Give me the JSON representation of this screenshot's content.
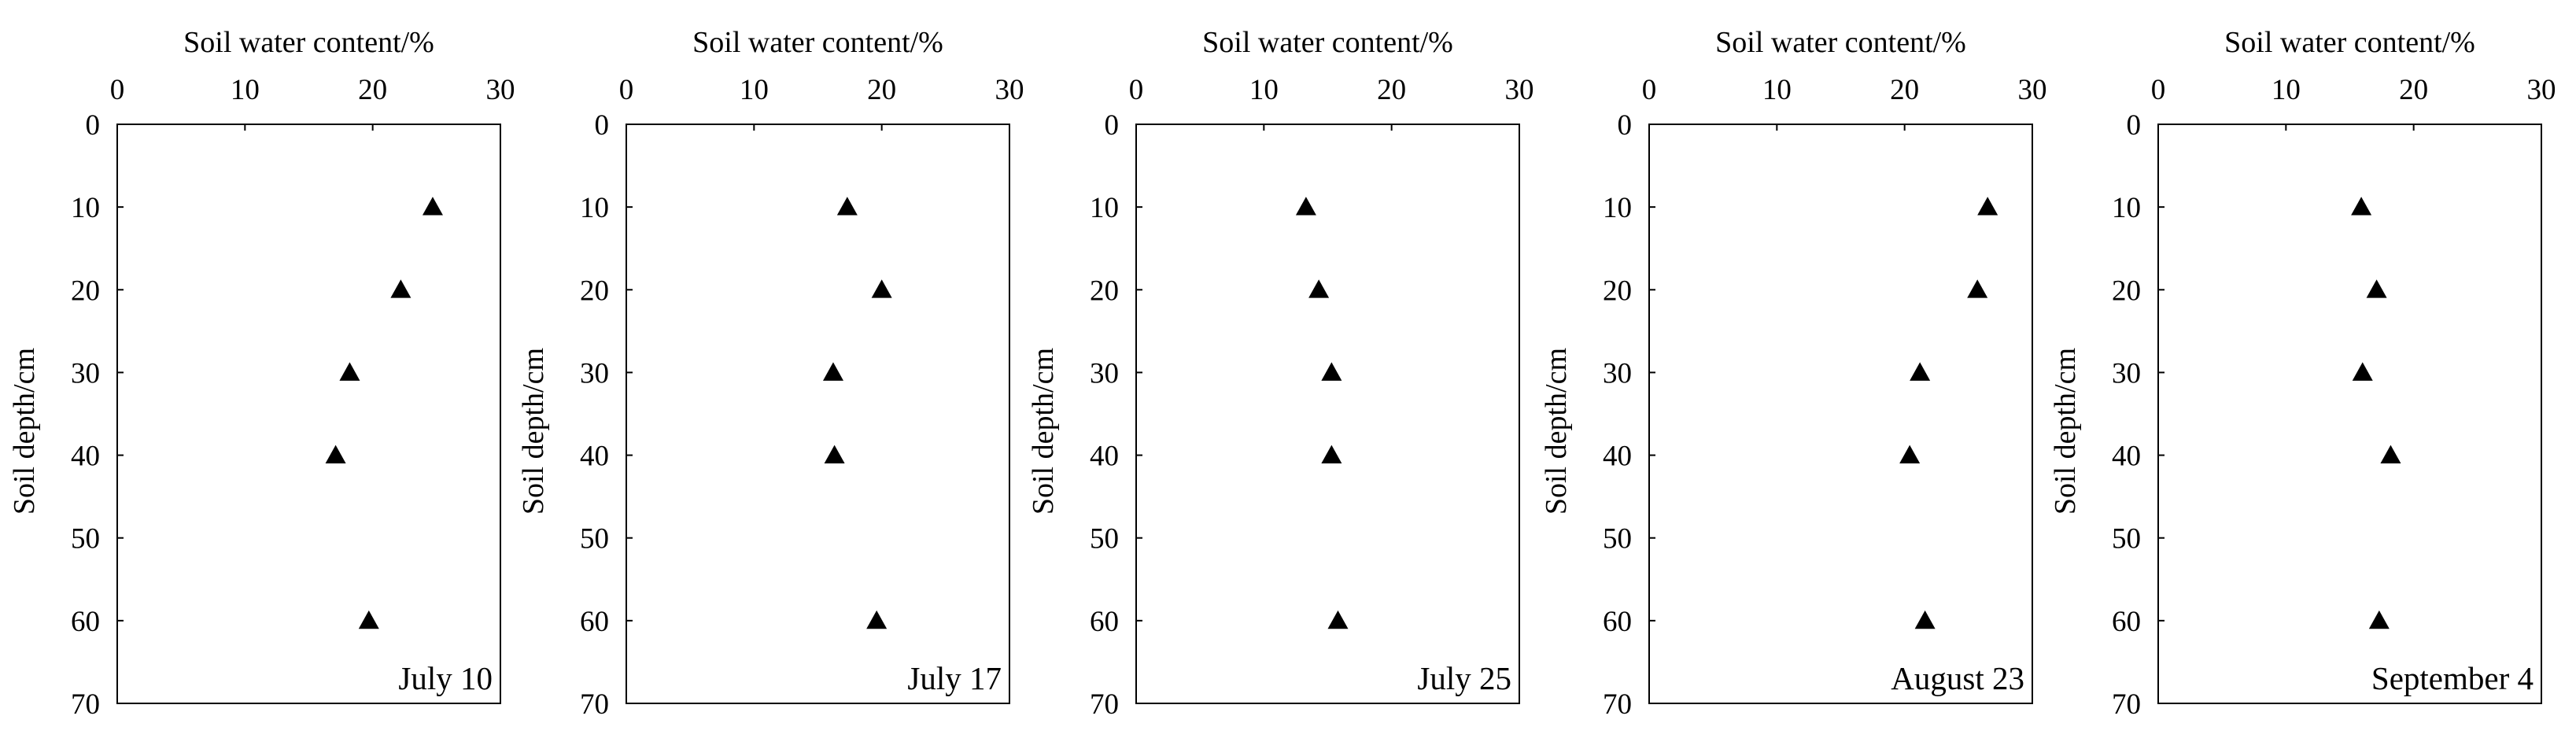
{
  "chart_data": [
    {
      "type": "scatter",
      "title": "July 10",
      "xlabel": "Soil water content/%",
      "ylabel": "Soil depth/cm",
      "xlim": [
        0,
        30
      ],
      "ylim": [
        0,
        70
      ],
      "xticks": [
        0,
        10,
        20,
        30
      ],
      "yticks": [
        0,
        10,
        20,
        30,
        40,
        50,
        60,
        70
      ],
      "y_inverted": true,
      "marker": "triangle",
      "series": [
        {
          "name": "July 10",
          "points": [
            {
              "x": 24.7,
              "y": 10
            },
            {
              "x": 22.2,
              "y": 20
            },
            {
              "x": 18.2,
              "y": 30
            },
            {
              "x": 17.1,
              "y": 40
            },
            {
              "x": 19.7,
              "y": 60
            }
          ]
        }
      ]
    },
    {
      "type": "scatter",
      "title": "July 17",
      "xlabel": "Soil water content/%",
      "ylabel": "Soil depth/cm",
      "xlim": [
        0,
        30
      ],
      "ylim": [
        0,
        70
      ],
      "xticks": [
        0,
        10,
        20,
        30
      ],
      "yticks": [
        0,
        10,
        20,
        30,
        40,
        50,
        60,
        70
      ],
      "y_inverted": true,
      "marker": "triangle",
      "series": [
        {
          "name": "July 17",
          "points": [
            {
              "x": 17.3,
              "y": 10
            },
            {
              "x": 20.0,
              "y": 20
            },
            {
              "x": 16.2,
              "y": 30
            },
            {
              "x": 16.3,
              "y": 40
            },
            {
              "x": 19.6,
              "y": 60
            }
          ]
        }
      ]
    },
    {
      "type": "scatter",
      "title": "July 25",
      "xlabel": "Soil water content/%",
      "ylabel": "Soil depth/cm",
      "xlim": [
        0,
        30
      ],
      "ylim": [
        0,
        70
      ],
      "xticks": [
        0,
        10,
        20,
        30
      ],
      "yticks": [
        0,
        10,
        20,
        30,
        40,
        50,
        60,
        70
      ],
      "y_inverted": true,
      "marker": "triangle",
      "series": [
        {
          "name": "July 25",
          "points": [
            {
              "x": 13.3,
              "y": 10
            },
            {
              "x": 14.3,
              "y": 20
            },
            {
              "x": 15.3,
              "y": 30
            },
            {
              "x": 15.3,
              "y": 40
            },
            {
              "x": 15.8,
              "y": 60
            }
          ]
        }
      ]
    },
    {
      "type": "scatter",
      "title": "August 23",
      "xlabel": "Soil water content/%",
      "ylabel": "Soil depth/cm",
      "xlim": [
        0,
        30
      ],
      "ylim": [
        0,
        70
      ],
      "xticks": [
        0,
        10,
        20,
        30
      ],
      "yticks": [
        0,
        10,
        20,
        30,
        40,
        50,
        60,
        70
      ],
      "y_inverted": true,
      "marker": "triangle",
      "series": [
        {
          "name": "August 23",
          "points": [
            {
              "x": 26.5,
              "y": 10
            },
            {
              "x": 25.7,
              "y": 20
            },
            {
              "x": 21.2,
              "y": 30
            },
            {
              "x": 20.4,
              "y": 40
            },
            {
              "x": 21.6,
              "y": 60
            }
          ]
        }
      ]
    },
    {
      "type": "scatter",
      "title": "September 4",
      "xlabel": "Soil water content/%",
      "ylabel": "Soil depth/cm",
      "xlim": [
        0,
        30
      ],
      "ylim": [
        0,
        70
      ],
      "xticks": [
        0,
        10,
        20,
        30
      ],
      "yticks": [
        0,
        10,
        20,
        30,
        40,
        50,
        60,
        70
      ],
      "y_inverted": true,
      "marker": "triangle",
      "series": [
        {
          "name": "September 4",
          "points": [
            {
              "x": 15.9,
              "y": 10
            },
            {
              "x": 17.1,
              "y": 20
            },
            {
              "x": 16.0,
              "y": 30
            },
            {
              "x": 18.2,
              "y": 40
            },
            {
              "x": 17.3,
              "y": 60
            }
          ]
        }
      ]
    }
  ],
  "colors": {
    "marker": "#000000",
    "axis": "#000000",
    "background": "#ffffff"
  }
}
